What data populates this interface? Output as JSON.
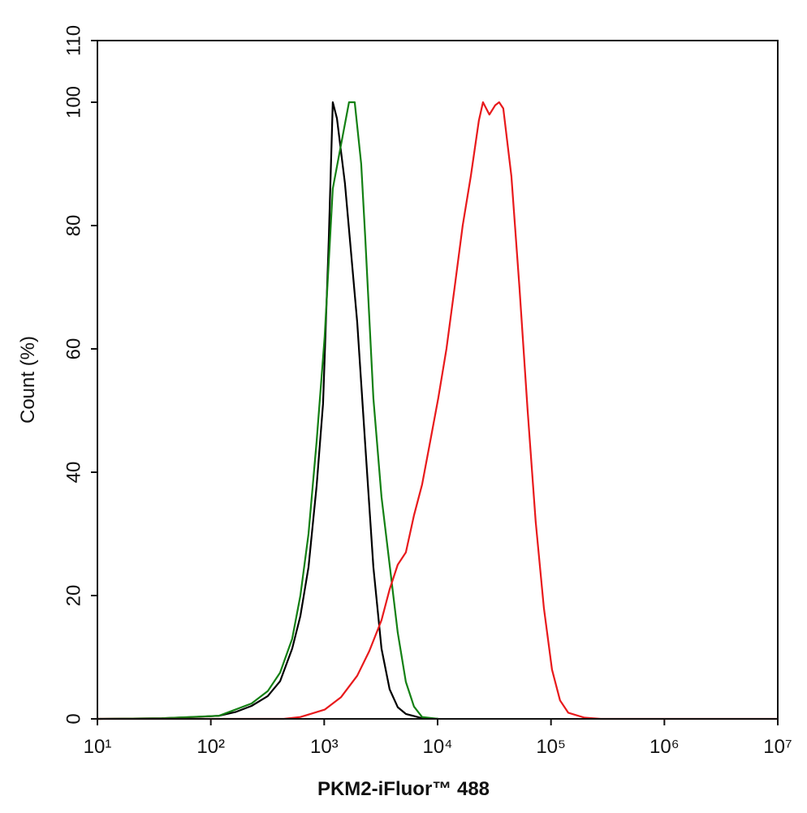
{
  "chart_data": {
    "type": "line",
    "x_label": "PKM2-iFluor™ 488",
    "y_label": "Count  (%)",
    "xscale": "log",
    "xlim": [
      10,
      10000000
    ],
    "xticks": [
      {
        "value": 10,
        "label": "10¹"
      },
      {
        "value": 100,
        "label": "10²"
      },
      {
        "value": 1000,
        "label": "10³"
      },
      {
        "value": 10000,
        "label": "10⁴"
      },
      {
        "value": 100000,
        "label": "10⁵"
      },
      {
        "value": 1000000,
        "label": "10⁶"
      },
      {
        "value": 10000000,
        "label": "10⁷"
      }
    ],
    "ylim": [
      0,
      110
    ],
    "yticks": [
      0,
      20,
      40,
      60,
      80,
      100,
      110
    ],
    "grid": false,
    "series": [
      {
        "color": "#000000",
        "x": [
          10,
          37,
          72,
          118,
          165,
          229,
          318,
          408,
          522,
          617,
          727,
          857,
          977,
          1096,
          1190,
          1294,
          1525,
          1954,
          2303,
          2716,
          3199,
          3775,
          4452,
          5248,
          7295,
          10140
        ],
        "values": [
          0,
          0.1,
          0.3,
          0.5,
          1.1,
          2.1,
          3.7,
          6.1,
          11.4,
          16.7,
          24.6,
          37.8,
          51.1,
          77.5,
          100,
          97.4,
          86.8,
          64.3,
          44.4,
          24.6,
          11.4,
          4.8,
          1.9,
          0.8,
          0.1,
          0
        ]
      },
      {
        "color": "#138013",
        "x": [
          10,
          37,
          118,
          229,
          318,
          408,
          522,
          617,
          727,
          857,
          1010,
          1190,
          1403,
          1655,
          1858,
          2119,
          2303,
          2716,
          3199,
          3775,
          4452,
          5248,
          6194,
          7295,
          10140
        ],
        "values": [
          0,
          0.1,
          0.5,
          2.5,
          4.5,
          7.5,
          13,
          20,
          30,
          45,
          62,
          86,
          93,
          100,
          100,
          90,
          78,
          52,
          36,
          25,
          14,
          6,
          2,
          0.3,
          0
        ]
      },
      {
        "color": "#e8191b",
        "x": [
          10,
          440,
          617,
          1010,
          1403,
          1954,
          2500,
          3199,
          3775,
          4452,
          5248,
          6194,
          7295,
          8610,
          10140,
          11970,
          14130,
          16630,
          19630,
          23120,
          25120,
          28640,
          32210,
          34910,
          37930,
          44770,
          52720,
          62230,
          73280,
          86500,
          102100,
          120200,
          141900,
          197200,
          274200,
          10000000
        ],
        "values": [
          0,
          0,
          0.3,
          1.5,
          3.5,
          7,
          11,
          16,
          21,
          25,
          27,
          33,
          38,
          45,
          52,
          60,
          70,
          80,
          88,
          97,
          100,
          98,
          99.5,
          100,
          99,
          88,
          70,
          50,
          32,
          18,
          8,
          3,
          1,
          0.2,
          0,
          0
        ]
      }
    ]
  }
}
